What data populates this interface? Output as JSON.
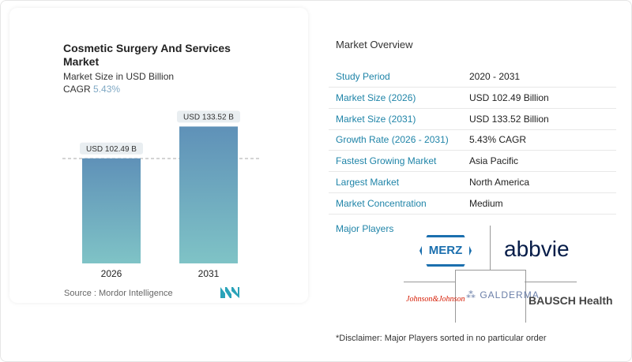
{
  "chart_data": {
    "type": "bar",
    "title": "Cosmetic Surgery And Services Market",
    "subtitle": "Market Size in USD Billion",
    "cagr_label": "CAGR",
    "cagr_value": "5.43%",
    "categories": [
      "2026",
      "2031"
    ],
    "values": [
      102.49,
      133.52
    ],
    "data_labels": [
      "USD 102.49 B",
      "USD 133.52 B"
    ],
    "ylim": [
      0,
      140
    ],
    "grid": false,
    "colors": {
      "top": "#5f91b8",
      "bottom": "#7fc3c6"
    }
  },
  "source": "Source :  Mordor Intelligence",
  "overview": {
    "title": "Market Overview",
    "rows": [
      {
        "label": "Study Period",
        "value": "2020 - 2031"
      },
      {
        "label": "Market Size (2026)",
        "value": "USD 102.49 Billion"
      },
      {
        "label": "Market Size (2031)",
        "value": "USD 133.52 Billion"
      },
      {
        "label": "Growth Rate (2026 - 2031)",
        "value": "5.43% CAGR"
      },
      {
        "label": "Fastest Growing Market",
        "value": "Asia Pacific"
      },
      {
        "label": "Largest Market",
        "value": "North America"
      },
      {
        "label": "Market Concentration",
        "value": "Medium"
      }
    ]
  },
  "players": {
    "title": "Major Players",
    "logos": [
      "MERZ",
      "abbvie",
      "Johnson&Johnson",
      "GALDERMA",
      "BAUSCH Health"
    ]
  },
  "disclaimer": "*Disclaimer: Major Players sorted in no particular order"
}
